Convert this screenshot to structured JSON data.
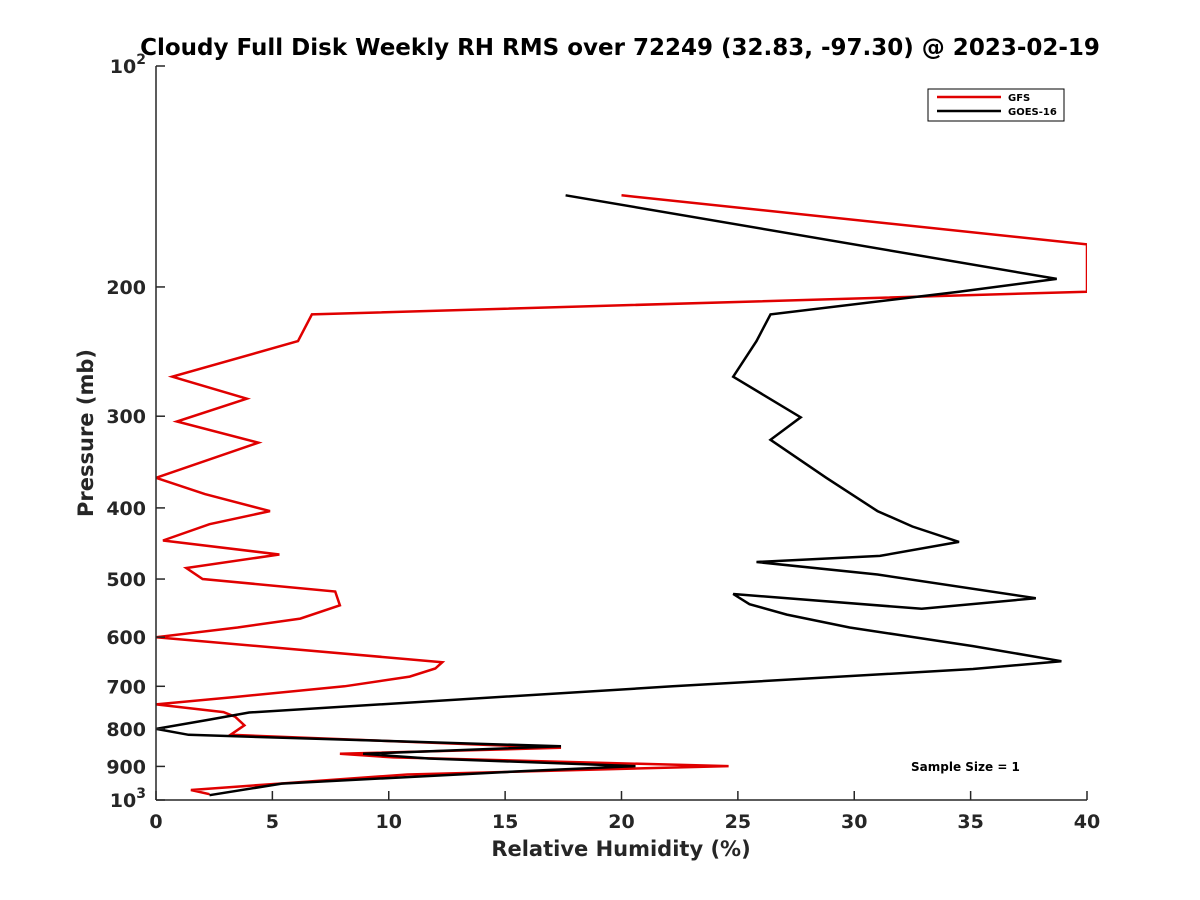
{
  "chart_data": {
    "type": "line",
    "title": "Cloudy Full Disk Weekly RH RMS over 72249 (32.83, -97.30) @ 2023-02-19",
    "xlabel": "Relative Humidity (%)",
    "ylabel": "Pressure (mb)",
    "xlim": [
      0,
      40
    ],
    "ylim": [
      100,
      1000
    ],
    "y_scale": "log",
    "y_reversed": true,
    "x_ticks": [
      "0",
      "5",
      "10",
      "15",
      "20",
      "25",
      "30",
      "35",
      "40"
    ],
    "y_ticks": [
      {
        "value": 100,
        "base": "10",
        "exp": "2"
      },
      {
        "value": 200,
        "label": "200"
      },
      {
        "value": 300,
        "label": "300"
      },
      {
        "value": 400,
        "label": "400"
      },
      {
        "value": 500,
        "label": "500"
      },
      {
        "value": 600,
        "label": "600"
      },
      {
        "value": 700,
        "label": "700"
      },
      {
        "value": 800,
        "label": "800"
      },
      {
        "value": 900,
        "label": "900"
      },
      {
        "value": 1000,
        "base": "10",
        "exp": "3"
      }
    ],
    "grid": false,
    "legend_position": "top-right",
    "annotation": "Sample Size = 1",
    "series": [
      {
        "name": "GFS",
        "color": "#e00000",
        "points": [
          [
            20.0,
            150
          ],
          [
            40.0,
            175
          ],
          [
            40.0,
            203
          ],
          [
            6.7,
            218
          ],
          [
            6.1,
            237
          ],
          [
            0.7,
            265
          ],
          [
            3.9,
            284
          ],
          [
            0.9,
            305
          ],
          [
            4.4,
            326
          ],
          [
            0.0,
            364
          ],
          [
            2.1,
            383
          ],
          [
            4.9,
            404
          ],
          [
            2.3,
            421
          ],
          [
            0.3,
            443
          ],
          [
            5.3,
            463
          ],
          [
            1.3,
            483
          ],
          [
            2.0,
            500
          ],
          [
            7.7,
            520
          ],
          [
            7.9,
            543
          ],
          [
            6.2,
            566
          ],
          [
            3.5,
            582
          ],
          [
            0.0,
            600
          ],
          [
            12.3,
            649
          ],
          [
            12.0,
            662
          ],
          [
            10.9,
            679
          ],
          [
            8.1,
            700
          ],
          [
            3.4,
            724
          ],
          [
            0.0,
            741
          ],
          [
            2.9,
            759
          ],
          [
            3.4,
            770
          ],
          [
            3.8,
            791
          ],
          [
            3.2,
            815
          ],
          [
            17.4,
            849
          ],
          [
            7.9,
            865
          ],
          [
            10.2,
            875
          ],
          [
            24.6,
            899
          ],
          [
            10.8,
            923
          ],
          [
            5.3,
            950
          ],
          [
            1.5,
            969
          ],
          [
            2.3,
            982
          ]
        ]
      },
      {
        "name": "GOES-16",
        "color": "#000000",
        "points": [
          [
            17.6,
            150
          ],
          [
            38.7,
            195
          ],
          [
            34.5,
            203
          ],
          [
            26.4,
            218
          ],
          [
            25.8,
            237
          ],
          [
            24.8,
            265
          ],
          [
            27.7,
            301
          ],
          [
            26.4,
            323
          ],
          [
            28.8,
            364
          ],
          [
            31.0,
            404
          ],
          [
            32.5,
            424
          ],
          [
            34.5,
            445
          ],
          [
            31.1,
            465
          ],
          [
            25.8,
            474
          ],
          [
            31.0,
            493
          ],
          [
            37.8,
            531
          ],
          [
            32.9,
            549
          ],
          [
            24.8,
            524
          ],
          [
            25.5,
            541
          ],
          [
            27.1,
            559
          ],
          [
            29.8,
            582
          ],
          [
            35.1,
            617
          ],
          [
            38.9,
            647
          ],
          [
            35.1,
            663
          ],
          [
            22.2,
            700
          ],
          [
            4.0,
            760
          ],
          [
            2.3,
            777
          ],
          [
            0.0,
            800
          ],
          [
            1.4,
            815
          ],
          [
            17.4,
            845
          ],
          [
            8.9,
            865
          ],
          [
            11.7,
            878
          ],
          [
            20.6,
            899
          ],
          [
            15.9,
            913
          ],
          [
            5.4,
            950
          ],
          [
            2.3,
            985
          ]
        ]
      }
    ]
  }
}
